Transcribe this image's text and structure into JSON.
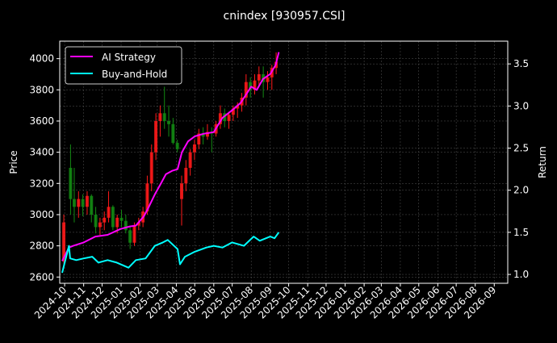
{
  "chart_data": {
    "type": "line",
    "title": "cnindex [930957.CSI]",
    "ylabel_left": "Price",
    "ylabel_right": "Return",
    "xlim": [
      "2024-09-23",
      "2026-09-23"
    ],
    "ylim_left": [
      2560,
      4112
    ],
    "ylim_right": [
      0.895,
      3.77
    ],
    "grid": true,
    "legend_position": "top-left",
    "x_tick_labels": [
      "2024-10",
      "2024-11",
      "2024-12",
      "2025-01",
      "2025-02",
      "2025-03",
      "2025-04",
      "2025-05",
      "2025-06",
      "2025-07",
      "2025-08",
      "2025-09",
      "2025-10",
      "2025-11",
      "2025-12",
      "2026-01",
      "2026-02",
      "2026-03",
      "2026-04",
      "2026-05",
      "2026-06",
      "2026-07",
      "2026-08",
      "2026-09"
    ],
    "y_left_ticks": [
      2600,
      2800,
      3000,
      3200,
      3400,
      3600,
      3800,
      4000
    ],
    "y_right_ticks": [
      "1.0",
      "1.5",
      "2.0",
      "2.5",
      "3.0",
      "3.5"
    ],
    "colors": {
      "up": "#ff1a1a",
      "down": "#138a13",
      "strategy": "#ff00ff",
      "buyhold": "#00ffff",
      "background": "#000000",
      "grid": "#555555"
    },
    "candles": {
      "dates": [
        "2024-09-27",
        "2024-10-08",
        "2024-10-14",
        "2024-10-21",
        "2024-10-28",
        "2024-11-04",
        "2024-11-11",
        "2024-11-18",
        "2024-11-25",
        "2024-12-02",
        "2024-12-09",
        "2024-12-16",
        "2024-12-23",
        "2024-12-30",
        "2025-01-06",
        "2025-01-13",
        "2025-01-20",
        "2025-01-27",
        "2025-02-03",
        "2025-02-10",
        "2025-02-17",
        "2025-02-24",
        "2025-03-03",
        "2025-03-10",
        "2025-03-17",
        "2025-03-24",
        "2025-03-31",
        "2025-04-07",
        "2025-04-14",
        "2025-04-21",
        "2025-04-28",
        "2025-05-05",
        "2025-05-12",
        "2025-05-19",
        "2025-05-26",
        "2025-06-02",
        "2025-06-09",
        "2025-06-16",
        "2025-06-23",
        "2025-06-30",
        "2025-07-07",
        "2025-07-14",
        "2025-07-21",
        "2025-07-28",
        "2025-08-04",
        "2025-08-11",
        "2025-08-18",
        "2025-08-25",
        "2025-09-01",
        "2025-09-08"
      ],
      "open": [
        2700,
        3300,
        3100,
        3050,
        3100,
        3050,
        3120,
        3000,
        2920,
        2950,
        2980,
        3050,
        2920,
        2980,
        2960,
        2900,
        2820,
        2930,
        2950,
        3020,
        3200,
        3400,
        3600,
        3650,
        3600,
        3580,
        3460,
        3100,
        3200,
        3300,
        3400,
        3450,
        3520,
        3500,
        3530,
        3520,
        3580,
        3650,
        3600,
        3640,
        3680,
        3700,
        3750,
        3850,
        3800,
        3860,
        3900,
        3850,
        3880,
        3940
      ],
      "high": [
        3000,
        3450,
        3300,
        3150,
        3130,
        3150,
        3130,
        3050,
        2980,
        3020,
        3150,
        3060,
        3000,
        3030,
        3000,
        2920,
        2950,
        2980,
        3050,
        3250,
        3450,
        3650,
        3700,
        3820,
        3700,
        3620,
        3480,
        3250,
        3350,
        3420,
        3480,
        3550,
        3560,
        3580,
        3560,
        3600,
        3700,
        3680,
        3660,
        3700,
        3720,
        3780,
        3900,
        3880,
        3900,
        3950,
        3950,
        3920,
        3960,
        4040
      ],
      "low": [
        2680,
        3000,
        2950,
        2980,
        2990,
        3000,
        2950,
        2880,
        2870,
        2900,
        2950,
        2900,
        2880,
        2920,
        2880,
        2780,
        2800,
        2900,
        2920,
        3000,
        3150,
        3350,
        3500,
        3550,
        3500,
        3450,
        3400,
        2930,
        3150,
        3250,
        3350,
        3420,
        3450,
        3480,
        3400,
        3500,
        3550,
        3560,
        3550,
        3600,
        3620,
        3660,
        3700,
        3750,
        3770,
        3820,
        3750,
        3800,
        3800,
        3900
      ],
      "close": [
        2950,
        3100,
        3050,
        3100,
        3050,
        3120,
        3000,
        2920,
        2950,
        2980,
        3050,
        2920,
        2980,
        2960,
        2900,
        2820,
        2930,
        2950,
        3020,
        3200,
        3400,
        3600,
        3650,
        3600,
        3580,
        3460,
        3420,
        3200,
        3300,
        3400,
        3450,
        3520,
        3500,
        3530,
        3520,
        3580,
        3650,
        3600,
        3640,
        3680,
        3700,
        3750,
        3850,
        3800,
        3860,
        3900,
        3850,
        3880,
        3940,
        3980
      ]
    },
    "series": [
      {
        "name": "AI Strategy",
        "axis": "right",
        "dates": [
          "2024-09-27",
          "2024-10-08",
          "2024-10-15",
          "2024-11-01",
          "2024-11-20",
          "2024-12-10",
          "2024-12-31",
          "2025-01-15",
          "2025-01-25",
          "2025-02-07",
          "2025-02-15",
          "2025-02-25",
          "2025-03-07",
          "2025-03-15",
          "2025-03-25",
          "2025-04-03",
          "2025-04-10",
          "2025-04-20",
          "2025-05-01",
          "2025-05-15",
          "2025-06-01",
          "2025-06-15",
          "2025-07-01",
          "2025-07-15",
          "2025-08-01",
          "2025-08-10",
          "2025-08-20",
          "2025-09-01",
          "2025-09-10",
          "2025-09-15"
        ],
        "values": [
          1.16,
          1.32,
          1.34,
          1.38,
          1.45,
          1.47,
          1.54,
          1.57,
          1.58,
          1.69,
          1.8,
          1.95,
          2.08,
          2.19,
          2.23,
          2.25,
          2.45,
          2.58,
          2.64,
          2.67,
          2.69,
          2.86,
          2.95,
          3.04,
          3.23,
          3.19,
          3.32,
          3.38,
          3.49,
          3.64
        ]
      },
      {
        "name": "Buy-and-Hold",
        "axis": "right",
        "dates": [
          "2024-09-27",
          "2024-10-08",
          "2024-10-10",
          "2024-10-20",
          "2024-11-01",
          "2024-11-15",
          "2024-11-25",
          "2024-12-10",
          "2024-12-25",
          "2025-01-13",
          "2025-01-25",
          "2025-02-10",
          "2025-02-25",
          "2025-03-10",
          "2025-03-18",
          "2025-04-03",
          "2025-04-07",
          "2025-04-15",
          "2025-05-01",
          "2025-05-20",
          "2025-06-01",
          "2025-06-15",
          "2025-07-01",
          "2025-07-20",
          "2025-08-05",
          "2025-08-15",
          "2025-09-01",
          "2025-09-08",
          "2025-09-15"
        ],
        "values": [
          1.02,
          1.34,
          1.19,
          1.17,
          1.19,
          1.21,
          1.14,
          1.17,
          1.14,
          1.08,
          1.17,
          1.19,
          1.34,
          1.38,
          1.41,
          1.3,
          1.12,
          1.21,
          1.27,
          1.32,
          1.34,
          1.32,
          1.38,
          1.34,
          1.45,
          1.4,
          1.45,
          1.43,
          1.5
        ]
      }
    ]
  }
}
